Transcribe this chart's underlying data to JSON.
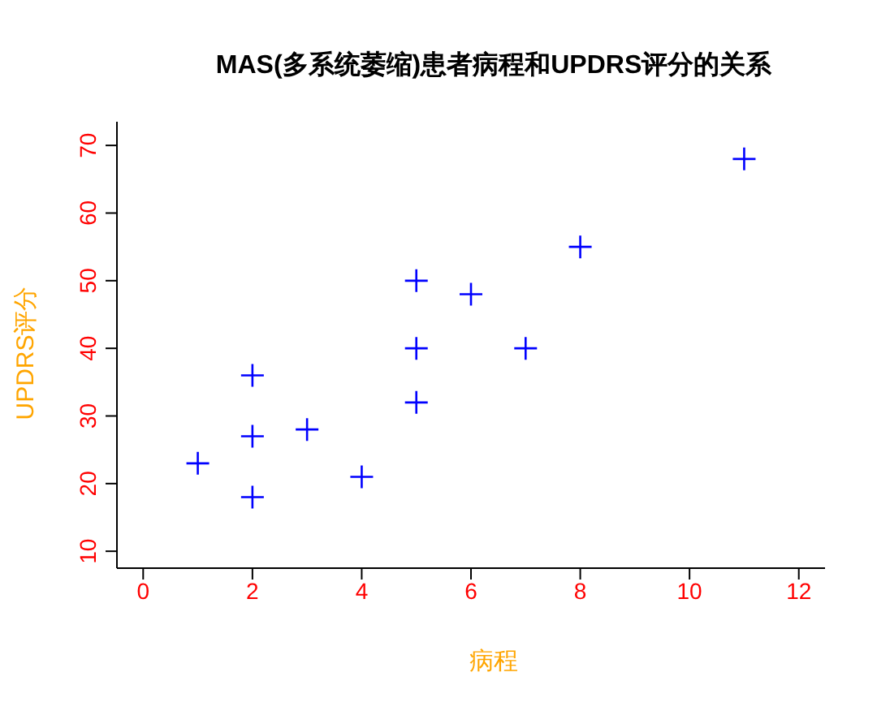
{
  "chart_data": {
    "type": "scatter",
    "title": "MAS(多系统萎缩)患者病程和UPDRS评分的关系",
    "xlabel": "病程",
    "ylabel": "UPDRS评分",
    "x": [
      1,
      2,
      2,
      2,
      3,
      4,
      5,
      5,
      5,
      6,
      7,
      8,
      11
    ],
    "series": [
      {
        "color": "#0000ff",
        "values": [
          23,
          36,
          27,
          18,
          28,
          21,
          50,
          40,
          32,
          48,
          40,
          55,
          68
        ]
      }
    ],
    "xlim": [
      -0.48,
      12.48
    ],
    "ylim": [
      7.5,
      73.5
    ],
    "xticks": [
      0,
      2,
      4,
      6,
      8,
      10,
      12
    ],
    "yticks": [
      10,
      20,
      30,
      40,
      50,
      60,
      70
    ],
    "marker": "cross",
    "grid": false,
    "legend": false
  }
}
